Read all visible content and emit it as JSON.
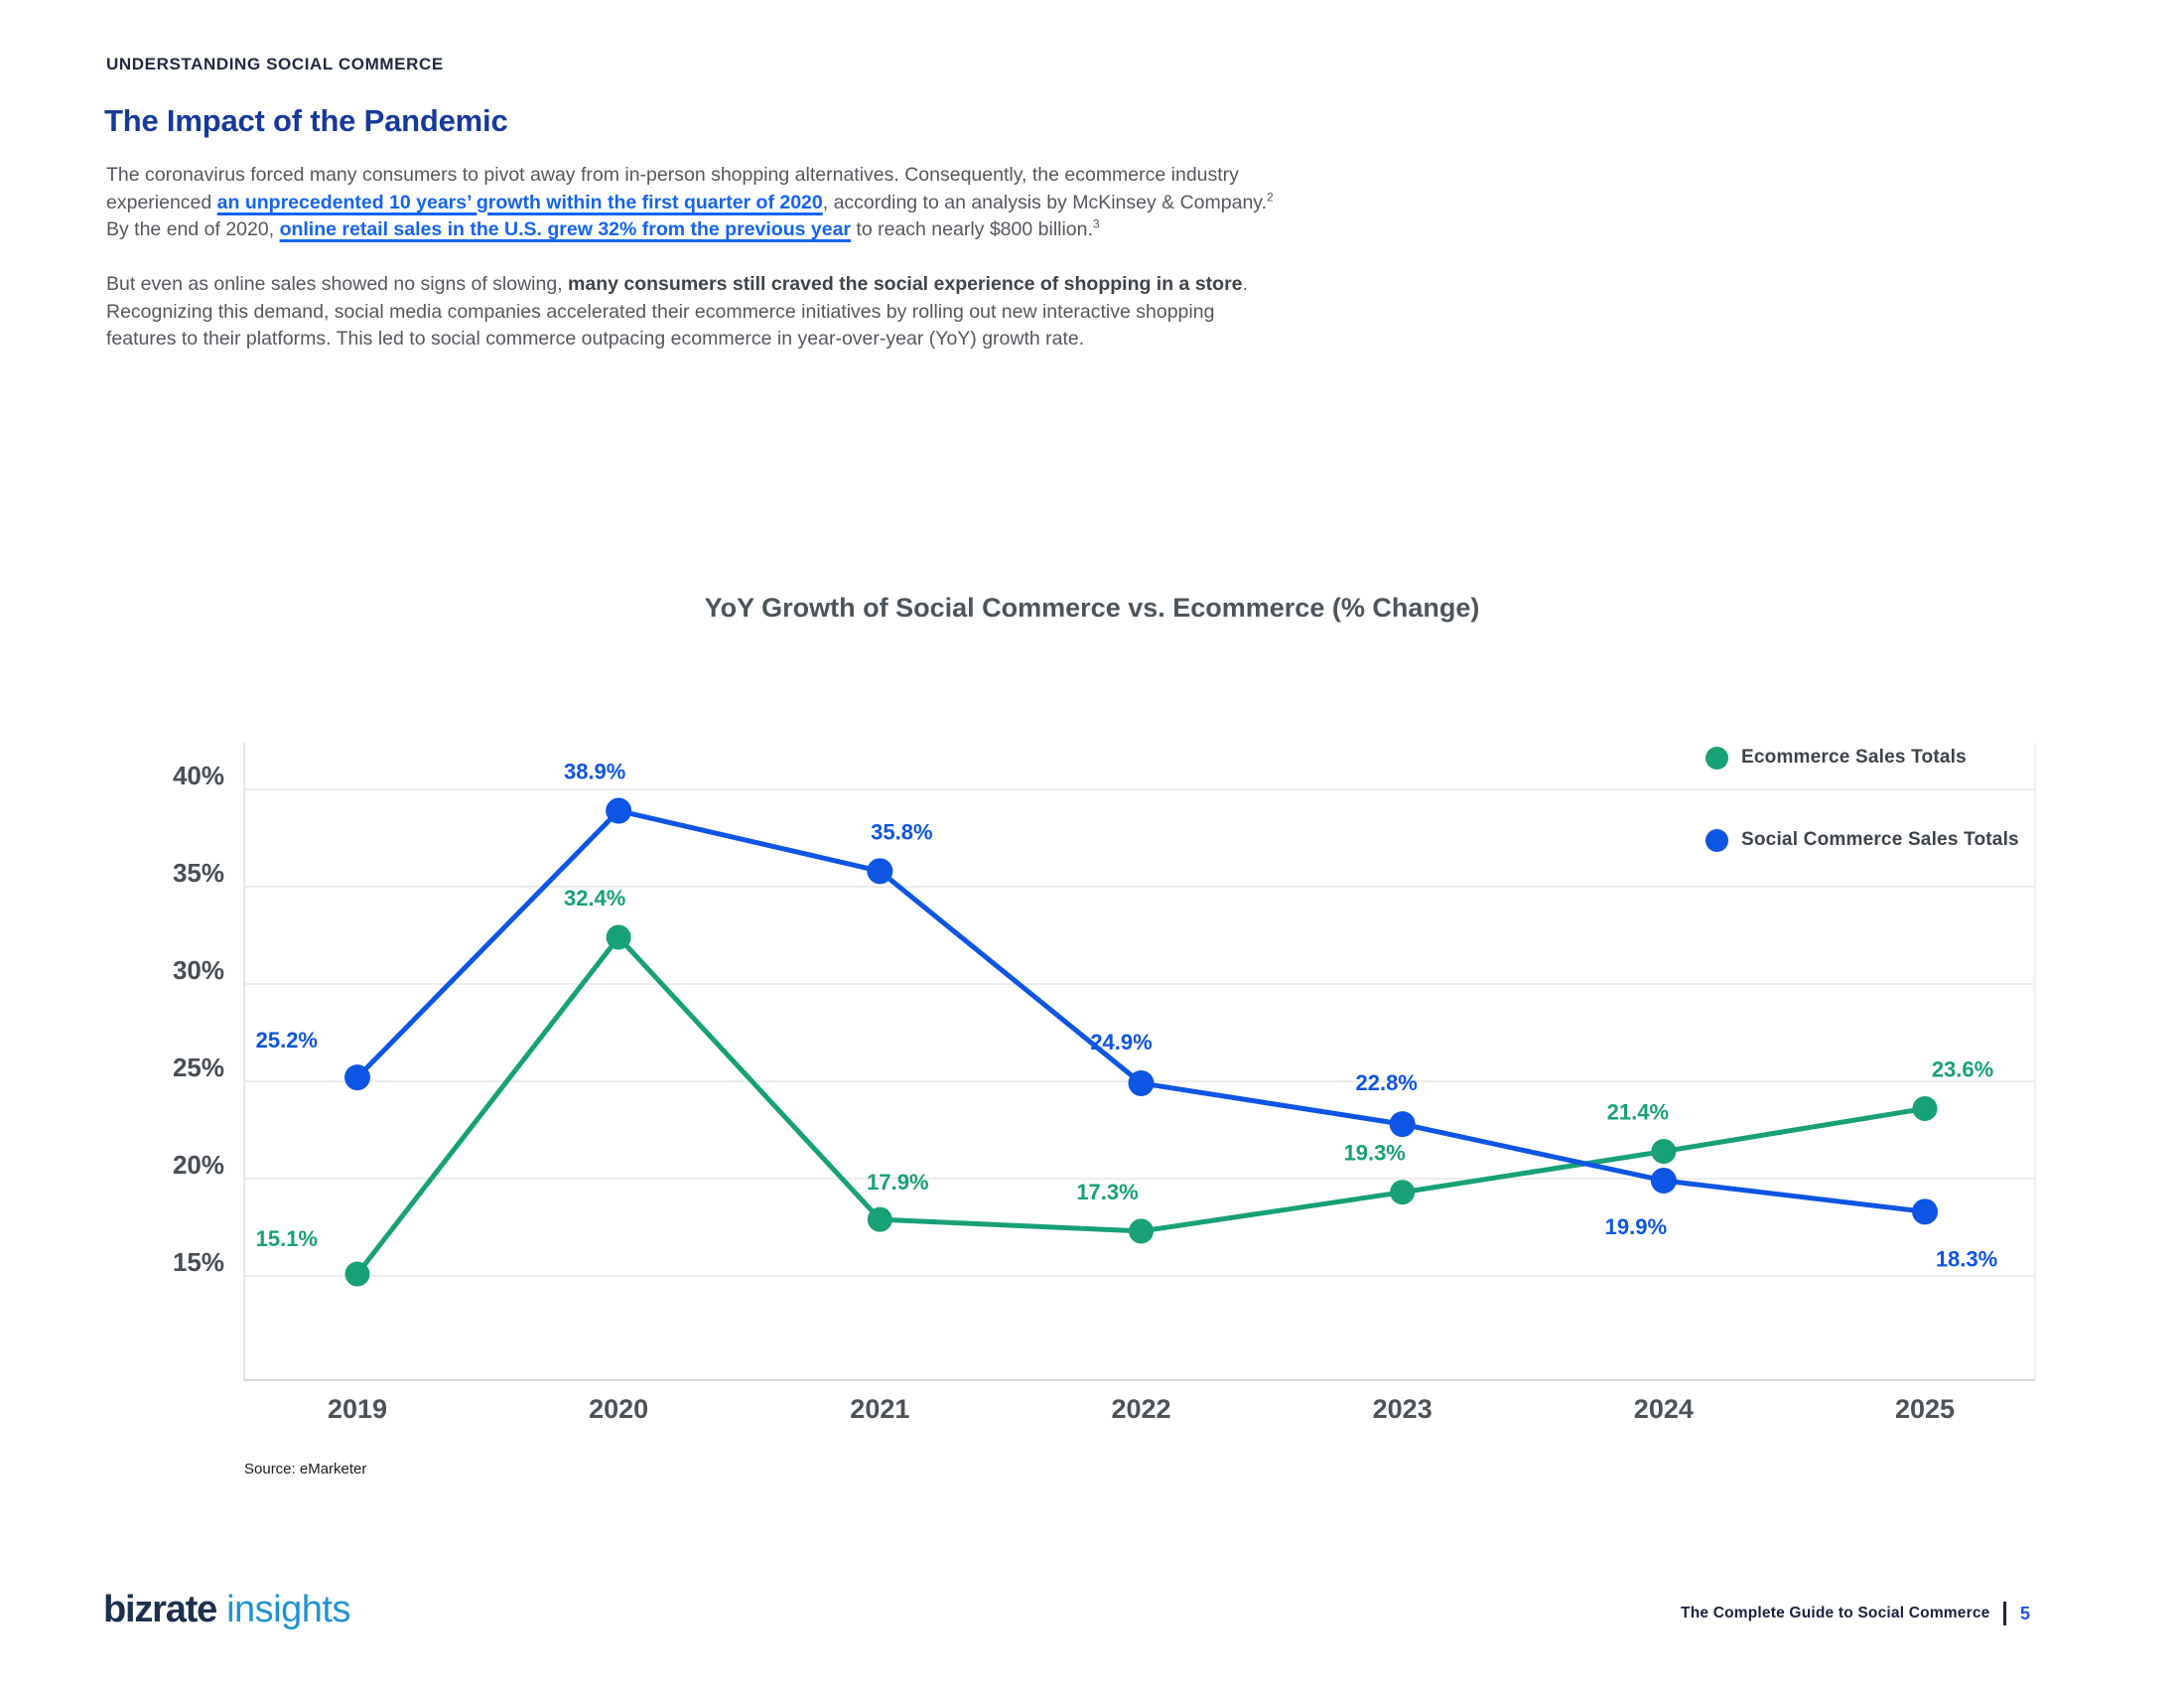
{
  "page": {
    "eyebrow": "UNDERSTANDING SOCIAL COMMERCE",
    "title": "The Impact of the Pandemic"
  },
  "paragraphs": [
    {
      "lines": [
        [
          {
            "t": "The coronavirus forced many consumers to pivot away from in-person shopping alternatives. Consequently, the ecommerce industry",
            "s": "n"
          }
        ],
        [
          {
            "t": "experienced ",
            "s": "n"
          },
          {
            "t": "an unprecedented 10 years’ growth within the first quarter of 2020",
            "s": "l"
          },
          {
            "t": ", according to an analysis by McKinsey & Company.",
            "s": "n"
          },
          {
            "t": "2",
            "s": "sup"
          }
        ],
        [
          {
            "t": "By the end of 2020, ",
            "s": "n"
          },
          {
            "t": "online retail sales in the U.S. grew 32% from the previous year",
            "s": "l"
          },
          {
            "t": " to reach nearly $800 billion.",
            "s": "n"
          },
          {
            "t": "3",
            "s": "sup"
          }
        ]
      ]
    },
    {
      "lines": [
        [
          {
            "t": "But even as online sales showed no signs of slowing, ",
            "s": "n"
          },
          {
            "t": "many consumers still craved the social experience of shopping in a store",
            "s": "b"
          },
          {
            "t": ".",
            "s": "n"
          }
        ],
        [
          {
            "t": "Recognizing this demand, social media companies accelerated their ecommerce initiatives by rolling out new interactive shopping",
            "s": "n"
          }
        ],
        [
          {
            "t": "features to their platforms. This led to social commerce outpacing ecommerce in year-over-year (YoY) growth rate.",
            "s": "n"
          }
        ]
      ]
    }
  ],
  "chart_data": {
    "type": "line",
    "title": "YoY Growth of Social Commerce vs. Ecommerce (% Change)",
    "categories": [
      "2019",
      "2020",
      "2021",
      "2022",
      "2023",
      "2024",
      "2025"
    ],
    "series": [
      {
        "name": "Ecommerce Sales Totals",
        "color": "#18A077",
        "values": [
          15.1,
          32.4,
          17.9,
          17.3,
          19.3,
          21.4,
          23.6
        ]
      },
      {
        "name": "Social Commerce Sales Totals",
        "color": "#0D55E3",
        "values": [
          25.2,
          38.9,
          35.8,
          24.9,
          22.8,
          19.9,
          18.3
        ]
      }
    ],
    "yticks": [
      40,
      35,
      30,
      25,
      20,
      15
    ],
    "ylim": [
      10,
      42
    ],
    "grid": true,
    "legend_position": "top-right",
    "value_label_format": "0.0%",
    "source": "Source: eMarketer"
  },
  "footer": {
    "logo_primary": "bizrate",
    "logo_secondary": "insights",
    "guide_title": "The Complete Guide to Social Commerce",
    "page_number": "5"
  },
  "colors": {
    "title_blue": "#16399C",
    "link_blue": "#1563F2",
    "ecommerce_green": "#18A077",
    "social_blue": "#0D55E3",
    "body_text": "#54585E",
    "axis_text": "#474E54",
    "gridline": "#ECECEC",
    "logo_navy": "#1D3050",
    "logo_light_blue": "#1F93D3"
  }
}
